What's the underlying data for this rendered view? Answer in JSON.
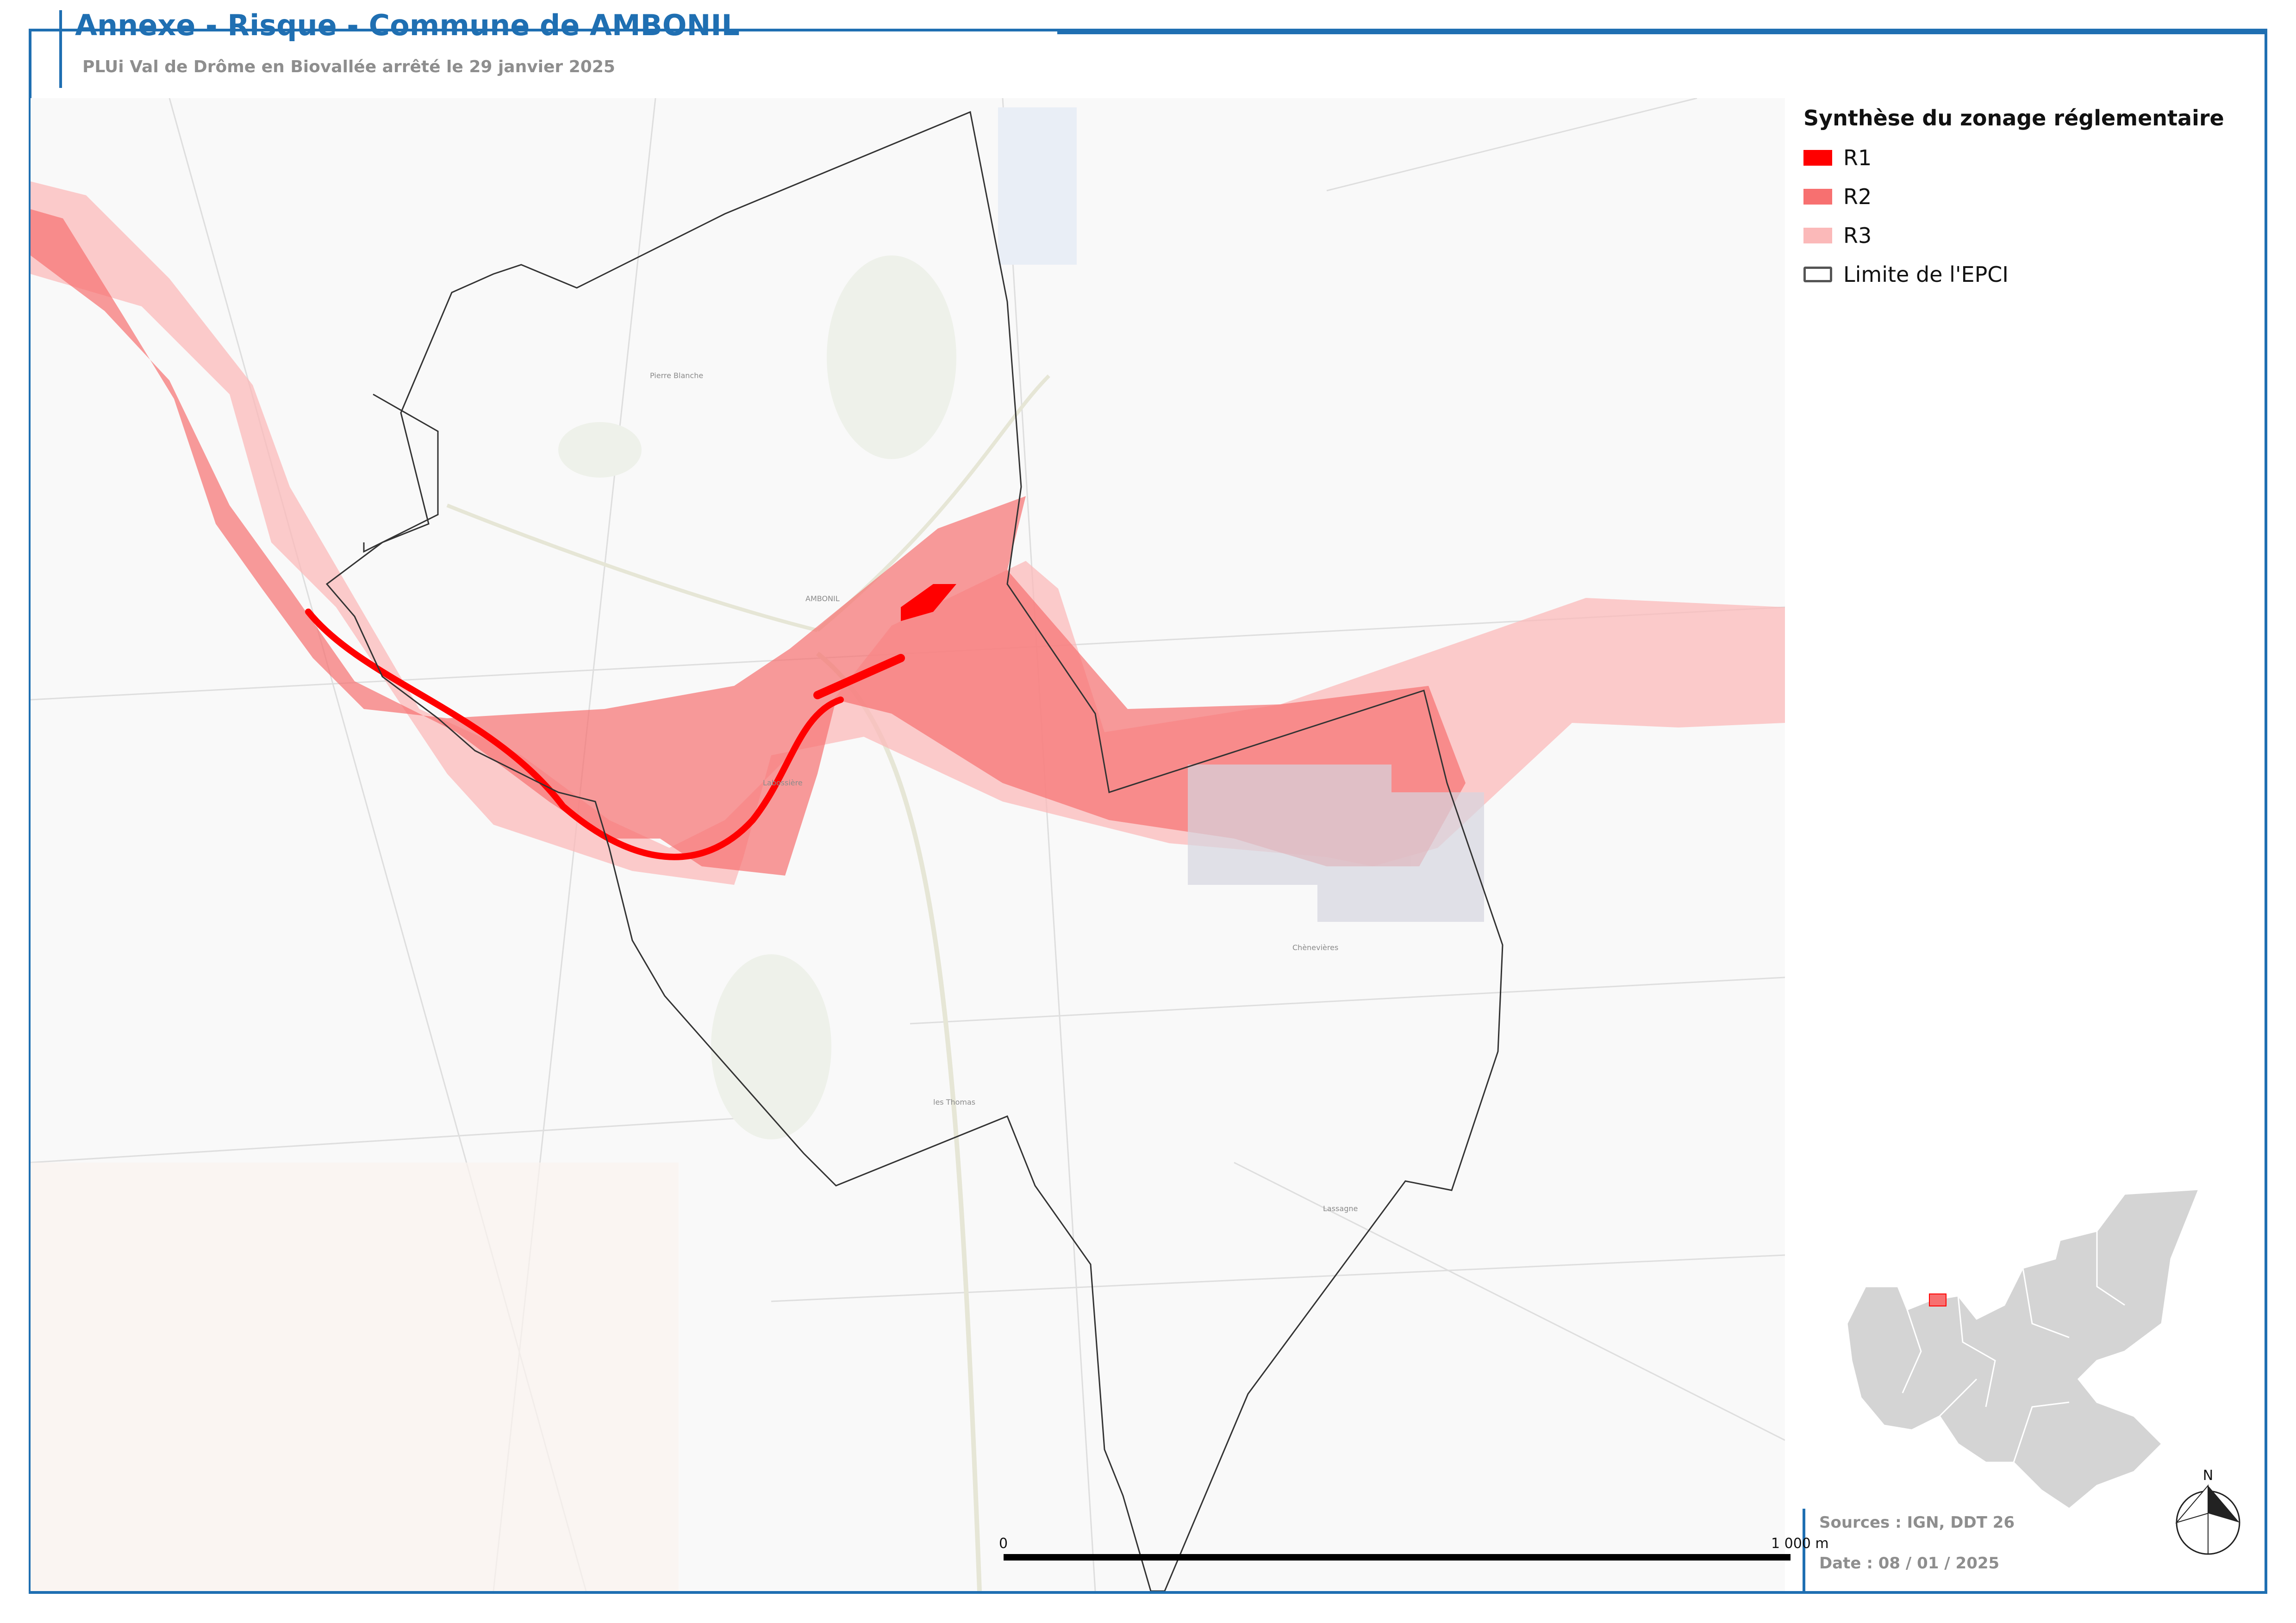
{
  "header": {
    "title": "Annexe - Risque - Commune de AMBONIL",
    "subtitle": "PLUi Val de Drôme en Biovallée arrêté le 29 janvier 2025"
  },
  "legend": {
    "title": "Synthèse du zonage réglementaire",
    "items": [
      {
        "label": "R1",
        "color": "#ff0000"
      },
      {
        "label": "R2",
        "color": "#f77070"
      },
      {
        "label": "R3",
        "color": "#fbb9b9"
      },
      {
        "label": "Limite de l'EPCI",
        "color": "#555555"
      }
    ]
  },
  "map": {
    "places": [
      "Pierre Blanche",
      "AMBONIL",
      "Labossière",
      "Chènevières",
      "les Thomas",
      "Lassagne"
    ]
  },
  "scale": {
    "start": "0",
    "end": "1 000 m"
  },
  "footer": {
    "sources": "Sources : IGN, DDT 26",
    "date": "Date : 08 / 01 / 2025"
  },
  "north": {
    "label": "N"
  }
}
